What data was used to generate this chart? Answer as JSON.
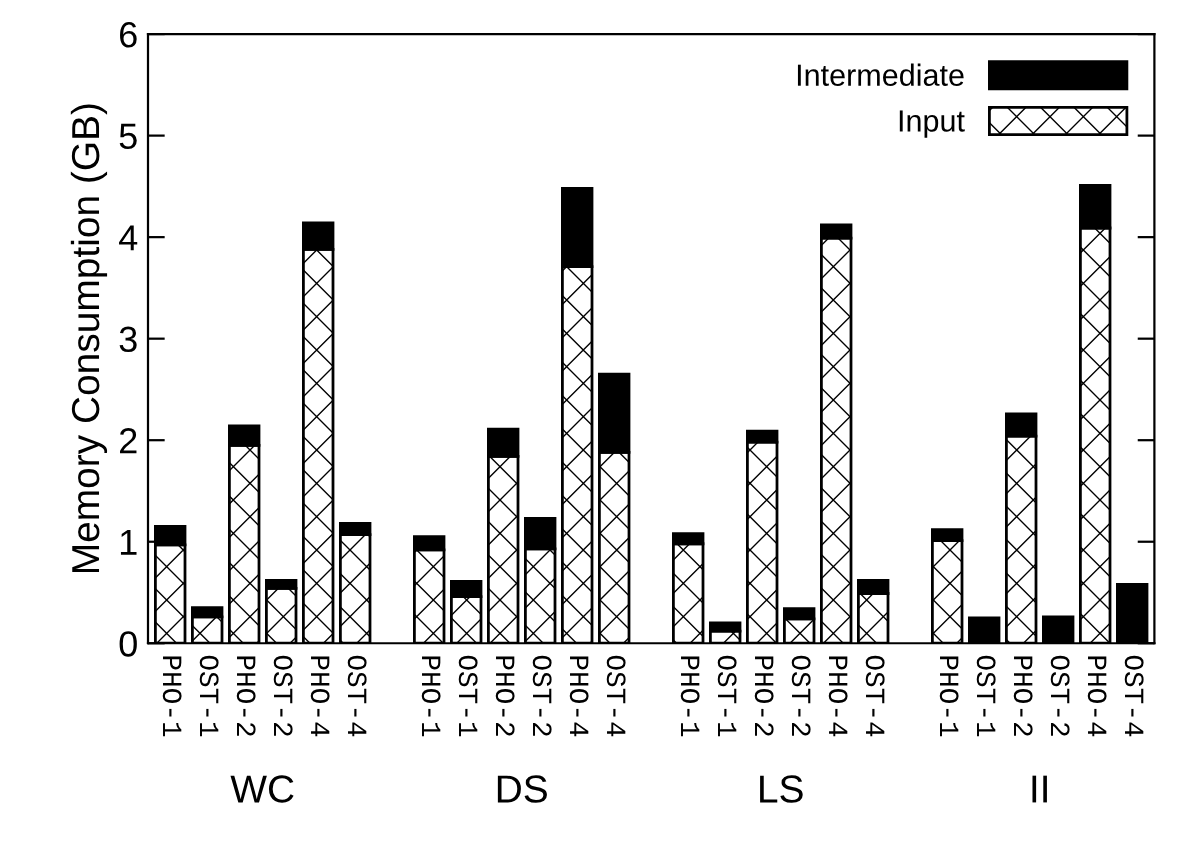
{
  "chart_data": {
    "type": "bar",
    "stacked": true,
    "ylabel": "Memory Consumption (GB)",
    "categories": [
      "PHO-1",
      "OST-1",
      "PHO-2",
      "OST-2",
      "PHO-4",
      "OST-4",
      null,
      "PHO-1",
      "OST-1",
      "PHO-2",
      "OST-2",
      "PHO-4",
      "OST-4",
      null,
      "PHO-1",
      "OST-1",
      "PHO-2",
      "OST-2",
      "PHO-4",
      "OST-4",
      null,
      "PHO-1",
      "OST-1",
      "PHO-2",
      "OST-2",
      "PHO-4",
      "OST-4"
    ],
    "series": [
      {
        "name": "Input",
        "color": "#ffffff",
        "values": [
          0.97,
          0.26,
          1.95,
          0.54,
          3.88,
          1.07,
          null,
          0.92,
          0.46,
          1.84,
          0.93,
          3.71,
          1.88,
          null,
          0.98,
          0.12,
          1.98,
          0.24,
          3.99,
          0.49,
          null,
          1.01,
          0,
          2.04,
          0,
          4.09,
          0
        ]
      },
      {
        "name": "Intermediate",
        "color": "#000000",
        "values": [
          0.18,
          0.09,
          0.19,
          0.08,
          0.26,
          0.11,
          null,
          0.13,
          0.15,
          0.27,
          0.3,
          0.77,
          0.77,
          null,
          0.1,
          0.08,
          0.11,
          0.1,
          0.13,
          0.13,
          null,
          0.11,
          0.25,
          0.22,
          0.26,
          0.42,
          0.58
        ]
      }
    ],
    "annotations": [
      "WC",
      "DS",
      "LS",
      "II"
    ],
    "ylim": [
      0,
      6
    ],
    "yticks": [
      0,
      1,
      2,
      3,
      4,
      5,
      6
    ],
    "grid": false,
    "legend": "top right"
  }
}
